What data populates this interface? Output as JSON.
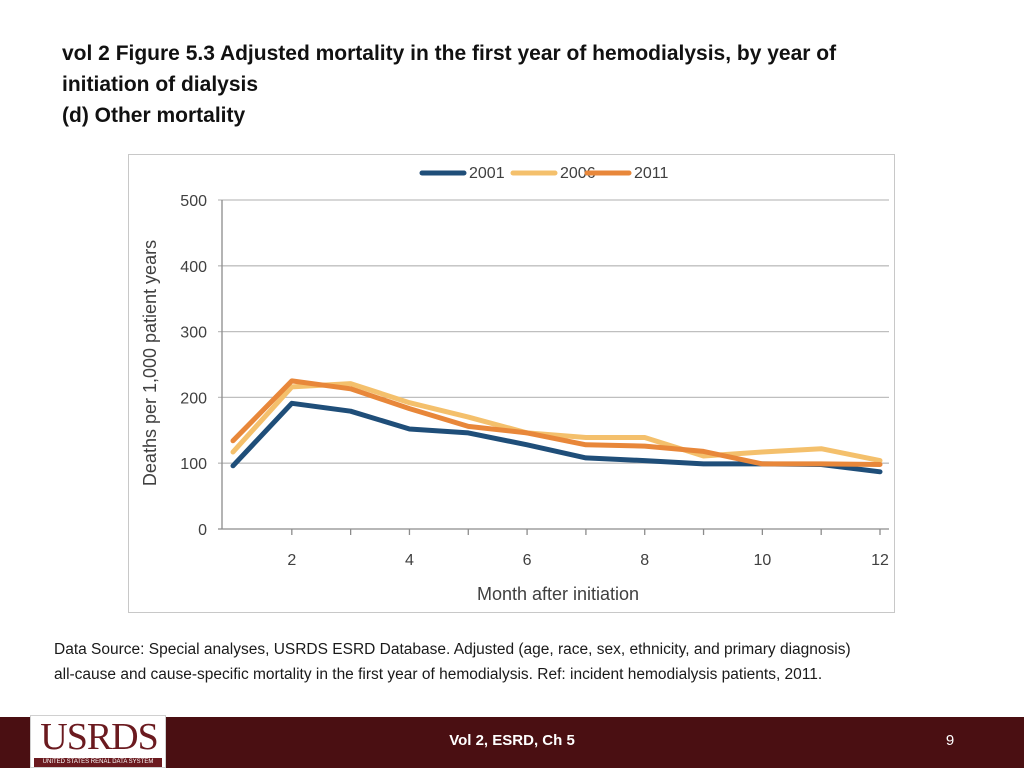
{
  "title": {
    "line1": "vol 2  Figure 5.3 Adjusted mortality in the first year of hemodialysis, by year of",
    "line2": "initiation of dialysis",
    "line3": "(d) Other mortality"
  },
  "chart_data": {
    "type": "line",
    "xlabel": "Month after initiation",
    "ylabel": "Deaths per 1,000 patient years",
    "x": [
      1,
      2,
      3,
      4,
      5,
      6,
      7,
      8,
      9,
      10,
      11,
      12
    ],
    "xticks": [
      2,
      4,
      6,
      8,
      10,
      12
    ],
    "xlim": [
      1,
      12
    ],
    "yticks": [
      0,
      100,
      200,
      300,
      400,
      500
    ],
    "ylim": [
      0,
      500
    ],
    "grid": true,
    "legend_position": "top-center",
    "series": [
      {
        "name": "2001",
        "color": "#1f4e79",
        "values": [
          96,
          191,
          179,
          152,
          146,
          128,
          108,
          104,
          99,
          99,
          98,
          87
        ]
      },
      {
        "name": "2006",
        "color": "#f4c06c",
        "values": [
          117,
          216,
          221,
          192,
          170,
          146,
          139,
          139,
          111,
          117,
          122,
          104
        ]
      },
      {
        "name": "2011",
        "color": "#e8873a",
        "values": [
          134,
          225,
          213,
          183,
          156,
          146,
          128,
          126,
          118,
          99,
          99,
          98
        ]
      }
    ]
  },
  "source": {
    "line1": "Data Source: Special analyses, USRDS ESRD Database. Adjusted (age, race, sex, ethnicity, and primary diagnosis)",
    "line2": "all-cause and cause-specific mortality in the first year of hemodialysis. Ref: incident hemodialysis patients, 2011."
  },
  "footer": {
    "logo_text": "USRDS",
    "logo_subtext": "UNITED STATES RENAL DATA SYSTEM",
    "center_text": "Vol 2, ESRD, Ch 5",
    "page_number": "9",
    "bar_color": "#4a0f12",
    "logo_color": "#6b1a1f"
  }
}
